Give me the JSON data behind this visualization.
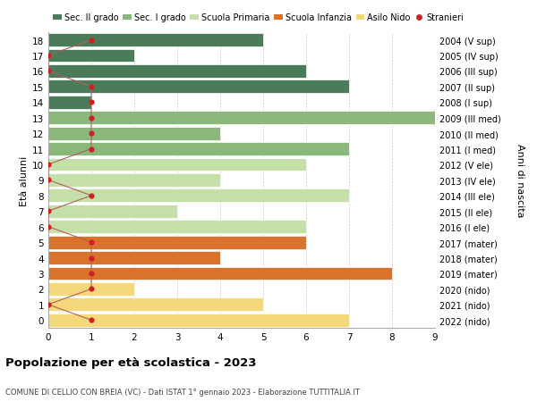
{
  "ages": [
    18,
    17,
    16,
    15,
    14,
    13,
    12,
    11,
    10,
    9,
    8,
    7,
    6,
    5,
    4,
    3,
    2,
    1,
    0
  ],
  "years": [
    "2004 (V sup)",
    "2005 (IV sup)",
    "2006 (III sup)",
    "2007 (II sup)",
    "2008 (I sup)",
    "2009 (III med)",
    "2010 (II med)",
    "2011 (I med)",
    "2012 (V ele)",
    "2013 (IV ele)",
    "2014 (III ele)",
    "2015 (II ele)",
    "2016 (I ele)",
    "2017 (mater)",
    "2018 (mater)",
    "2019 (mater)",
    "2020 (nido)",
    "2021 (nido)",
    "2022 (nido)"
  ],
  "values": [
    5,
    2,
    6,
    7,
    1,
    9,
    4,
    7,
    6,
    4,
    7,
    3,
    6,
    6,
    4,
    8,
    2,
    5,
    7
  ],
  "bar_colors": [
    "#4a7c59",
    "#4a7c59",
    "#4a7c59",
    "#4a7c59",
    "#4a7c59",
    "#8ab87a",
    "#8ab87a",
    "#8ab87a",
    "#c5dfa8",
    "#c5dfa8",
    "#c5dfa8",
    "#c5dfa8",
    "#c5dfa8",
    "#d9722a",
    "#d9722a",
    "#d9722a",
    "#f5d87a",
    "#f5d87a",
    "#f5d87a"
  ],
  "stranieri_values": [
    1,
    0,
    0,
    1,
    1,
    1,
    1,
    1,
    0,
    0,
    1,
    0,
    0,
    1,
    1,
    1,
    1,
    0,
    1
  ],
  "stranieri_color": "#cc2222",
  "stranieri_line_color": "#b06060",
  "legend_labels": [
    "Sec. II grado",
    "Sec. I grado",
    "Scuola Primaria",
    "Scuola Infanzia",
    "Asilo Nido",
    "Stranieri"
  ],
  "legend_colors": [
    "#4a7c59",
    "#8ab87a",
    "#c5dfa8",
    "#d9722a",
    "#f5d87a",
    "#cc2222"
  ],
  "ylabel_left": "Età alunni",
  "ylabel_right": "Anni di nascita",
  "title": "Popolazione per età scolastica - 2023",
  "subtitle": "COMUNE DI CELLIO CON BREIA (VC) - Dati ISTAT 1° gennaio 2023 - Elaborazione TUTTITALIA.IT",
  "xlim": [
    0,
    9
  ],
  "ylim": [
    -0.5,
    18.5
  ],
  "background_color": "#ffffff",
  "grid_color": "#cccccc"
}
